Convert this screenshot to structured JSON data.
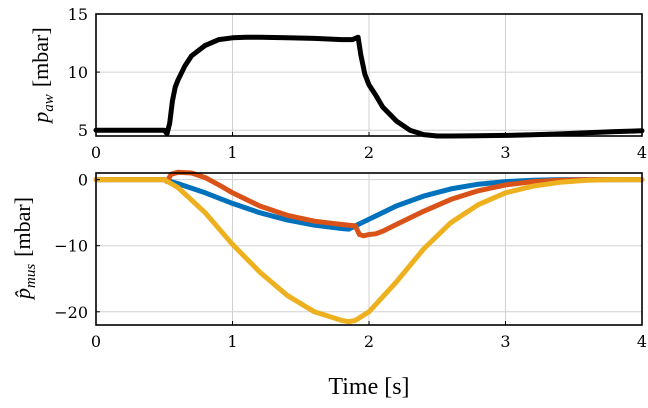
{
  "chart_data": [
    {
      "type": "line",
      "ylabel": "p_aw [mbar]",
      "ylabel_main": "p",
      "ylabel_sub": "aw",
      "ylabel_unit": "[mbar]",
      "xlim": [
        0,
        4
      ],
      "ylim": [
        4.5,
        15
      ],
      "xticks": [
        "0",
        "1",
        "2",
        "3",
        "4"
      ],
      "yticks": [
        "5",
        "10",
        "15"
      ],
      "ytick_values": [
        5,
        10,
        15
      ],
      "grid": true,
      "series": [
        {
          "color": "#000000",
          "x": [
            0,
            0.5,
            0.52,
            0.54,
            0.56,
            0.58,
            0.6,
            0.65,
            0.7,
            0.8,
            0.9,
            1.0,
            1.1,
            1.2,
            1.4,
            1.6,
            1.8,
            1.88,
            1.92,
            1.94,
            1.97,
            2.0,
            2.05,
            2.1,
            2.2,
            2.3,
            2.4,
            2.5,
            2.6,
            2.8,
            3.0,
            3.2,
            3.4,
            3.6,
            3.8,
            4.0
          ],
          "y": [
            5.0,
            5.0,
            4.7,
            5.6,
            7.5,
            8.7,
            9.3,
            10.5,
            11.4,
            12.3,
            12.8,
            12.95,
            13.0,
            13.0,
            12.95,
            12.9,
            12.8,
            12.8,
            13.0,
            11.5,
            9.8,
            8.9,
            8.0,
            7.0,
            5.8,
            5.0,
            4.62,
            4.5,
            4.5,
            4.52,
            4.55,
            4.6,
            4.68,
            4.78,
            4.88,
            4.95
          ]
        }
      ]
    },
    {
      "type": "line",
      "xlabel": "Time [s]",
      "ylabel_main": "p̂",
      "ylabel_sub": "mus",
      "ylabel_unit": "[mbar]",
      "xlim": [
        0,
        4
      ],
      "ylim": [
        -22,
        1
      ],
      "xticks": [
        "0",
        "1",
        "2",
        "3",
        "4"
      ],
      "yticks": [
        "0",
        "−10",
        "−20"
      ],
      "ytick_values": [
        0,
        -10,
        -20
      ],
      "grid": true,
      "series": [
        {
          "color": "#0072BD",
          "x": [
            0,
            0.5,
            0.6,
            0.8,
            1.0,
            1.2,
            1.4,
            1.6,
            1.8,
            1.85,
            1.9,
            2.0,
            2.2,
            2.4,
            2.6,
            2.8,
            3.0,
            3.2,
            3.4,
            3.6,
            3.8,
            4.0
          ],
          "y": [
            0,
            0,
            -0.6,
            -2.0,
            -3.6,
            -5.0,
            -6.1,
            -6.9,
            -7.4,
            -7.5,
            -7.0,
            -6.0,
            -4.0,
            -2.5,
            -1.4,
            -0.7,
            -0.3,
            -0.1,
            0,
            0,
            0,
            0
          ]
        },
        {
          "color": "#D95319",
          "x": [
            0,
            0.5,
            0.52,
            0.55,
            0.6,
            0.7,
            0.8,
            0.9,
            1.0,
            1.2,
            1.4,
            1.6,
            1.8,
            1.9,
            1.93,
            1.96,
            2.0,
            2.05,
            2.1,
            2.2,
            2.4,
            2.6,
            2.8,
            3.0,
            3.2,
            3.4,
            3.6,
            3.8,
            4.0
          ],
          "y": [
            0,
            0,
            -0.3,
            0.8,
            1.1,
            1.0,
            0.3,
            -0.8,
            -2.0,
            -4.0,
            -5.4,
            -6.3,
            -6.8,
            -7.0,
            -8.3,
            -8.5,
            -8.3,
            -8.2,
            -7.8,
            -6.8,
            -4.8,
            -3.0,
            -1.7,
            -0.8,
            -0.3,
            -0.1,
            0,
            0,
            0
          ]
        },
        {
          "color": "#EDB120",
          "x": [
            0,
            0.5,
            0.6,
            0.8,
            1.0,
            1.2,
            1.4,
            1.6,
            1.8,
            1.85,
            1.9,
            2.0,
            2.2,
            2.4,
            2.6,
            2.8,
            3.0,
            3.2,
            3.4,
            3.6,
            3.8,
            4.0
          ],
          "y": [
            0,
            0,
            -1.2,
            -5.0,
            -9.8,
            -14.0,
            -17.5,
            -20.0,
            -21.3,
            -21.5,
            -21.3,
            -20.0,
            -15.5,
            -10.5,
            -6.5,
            -3.8,
            -2.0,
            -1.0,
            -0.4,
            -0.1,
            0,
            0
          ]
        }
      ]
    }
  ]
}
